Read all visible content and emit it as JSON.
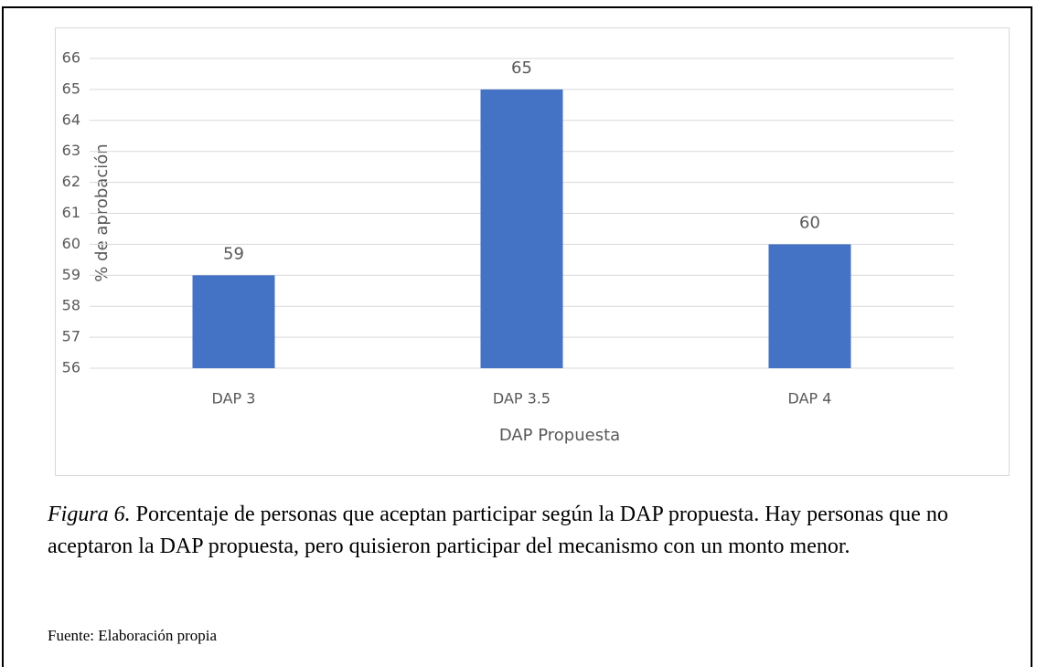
{
  "chart_data": {
    "type": "bar",
    "categories": [
      "DAP 3",
      "DAP 3.5",
      "DAP 4"
    ],
    "values": [
      59,
      65,
      60
    ],
    "color": "#4472c4",
    "ylim": [
      56,
      66
    ],
    "yticks": [
      56,
      57,
      58,
      59,
      60,
      61,
      62,
      63,
      64,
      65,
      66
    ],
    "grid": true,
    "xlabel": "DAP Propuesta",
    "ylabel": "% de aprobación"
  },
  "caption": {
    "label": "Figura 6.",
    "text": "Porcentaje de personas que aceptan participar según la DAP propuesta. Hay personas que no aceptaron la DAP propuesta, pero quisieron participar del mecanismo con un monto menor."
  },
  "source": "Fuente: Elaboración propia"
}
